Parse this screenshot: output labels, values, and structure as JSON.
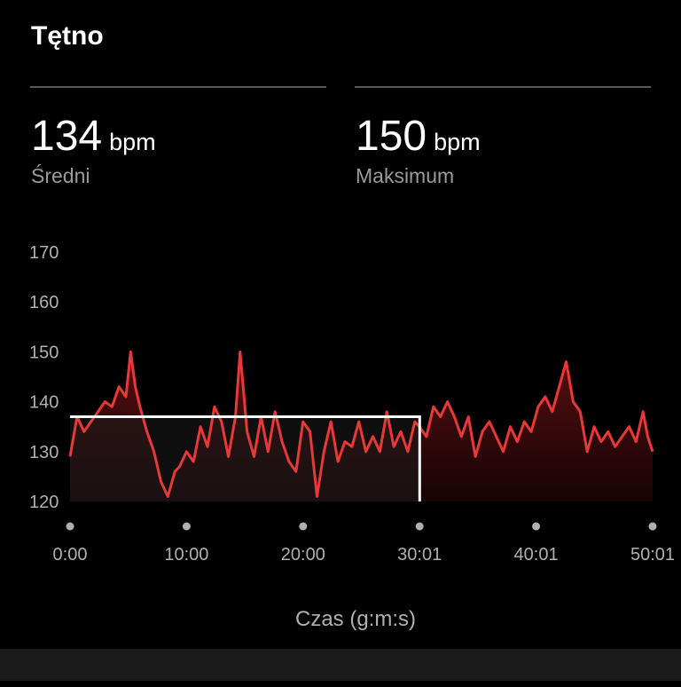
{
  "header": {
    "title": "Tętno"
  },
  "stats": [
    {
      "value": "134",
      "unit": "bpm",
      "label": "Średni"
    },
    {
      "value": "150",
      "unit": "bpm",
      "label": "Maksimum"
    }
  ],
  "colors": {
    "line": "#e83838",
    "fill_top": "#5a0f12",
    "highlight": "#ffffff",
    "background": "#000000"
  },
  "chart_data": {
    "type": "area",
    "xlabel": "Czas (g:m:s)",
    "ylabel": "",
    "ylim": [
      120,
      170
    ],
    "xlim": [
      0,
      50.02
    ],
    "y_ticks": [
      "120",
      "130",
      "140",
      "150",
      "160",
      "170"
    ],
    "x_ticks": [
      "0:00",
      "10:00",
      "20:00",
      "30:01",
      "40:01",
      "50:01"
    ],
    "series": [
      {
        "x_unit": "minutes",
        "x": [
          0.0,
          0.6,
          1.2,
          1.8,
          2.4,
          3.0,
          3.6,
          4.2,
          4.8,
          5.2,
          5.6,
          6.0,
          6.6,
          7.2,
          7.8,
          8.4,
          9.0,
          9.4,
          10.0,
          10.6,
          11.2,
          11.8,
          12.4,
          13.0,
          13.6,
          14.2,
          14.6,
          15.2,
          15.8,
          16.4,
          17.0,
          17.6,
          18.2,
          18.8,
          19.4,
          20.0,
          20.6,
          21.2,
          21.8,
          22.4,
          23.0,
          23.6,
          24.2,
          24.8,
          25.4,
          26.0,
          26.6,
          27.2,
          27.8,
          28.4,
          29.0,
          29.6,
          30.0,
          30.6,
          31.2,
          31.8,
          32.4,
          33.0,
          33.6,
          34.2,
          34.8,
          35.4,
          36.0,
          36.6,
          37.2,
          37.8,
          38.4,
          39.0,
          39.6,
          40.2,
          40.8,
          41.4,
          42.0,
          42.6,
          43.2,
          43.8,
          44.4,
          45.0,
          45.6,
          46.2,
          46.8,
          47.4,
          48.0,
          48.6,
          49.2,
          49.6,
          50.02
        ],
        "values": [
          129,
          137,
          134,
          136,
          138,
          140,
          139,
          143,
          141,
          150,
          143,
          139,
          134,
          130,
          124,
          121,
          126,
          127,
          130,
          128,
          135,
          131,
          139,
          136,
          129,
          137,
          150,
          134,
          129,
          137,
          130,
          138,
          132,
          128,
          126,
          136,
          134,
          121,
          130,
          136,
          128,
          132,
          131,
          136,
          130,
          133,
          130,
          138,
          131,
          134,
          130,
          136,
          135,
          133,
          139,
          137,
          140,
          137,
          133,
          137,
          129,
          134,
          136,
          133,
          130,
          135,
          132,
          136,
          134,
          139,
          141,
          138,
          143,
          148,
          140,
          138,
          130,
          135,
          132,
          134,
          131,
          133,
          135,
          132,
          138,
          133,
          130
        ]
      }
    ],
    "highlight": {
      "x_start": 0.0,
      "x_end": 30.02,
      "value": 137
    }
  }
}
